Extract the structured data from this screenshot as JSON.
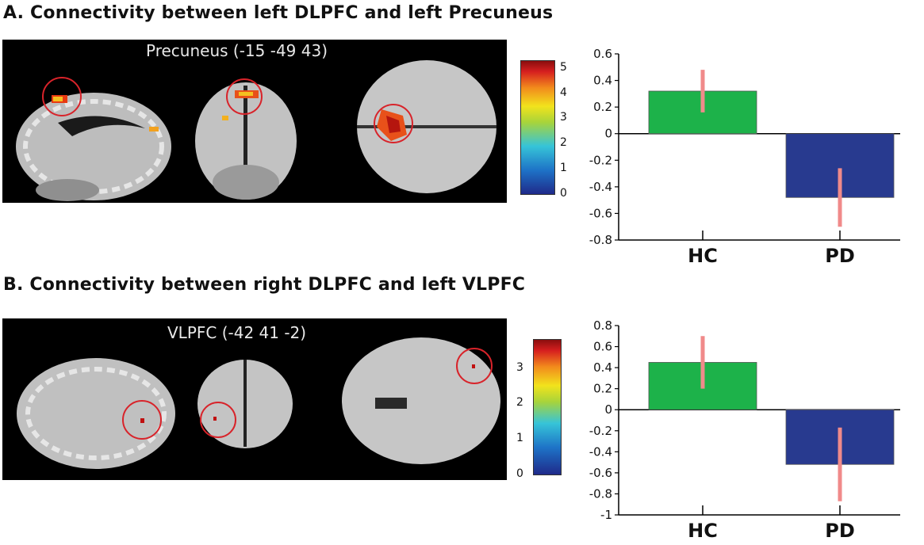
{
  "panels": [
    {
      "title": "A. Connectivity between left DLPFC and left Precuneus",
      "roi_label": "Precuneus (-15 -49 43)",
      "colorbar": {
        "ticks": [
          "0",
          "1",
          "2",
          "3",
          "4",
          "5"
        ],
        "min": 0,
        "max": 5.3
      }
    },
    {
      "title": "B. Connectivity between right DLPFC and left VLPFC",
      "roi_label": "VLPFC (-42 41 -2)",
      "colorbar": {
        "ticks": [
          "0",
          "1",
          "2",
          "3"
        ],
        "min": 0,
        "max": 3.8
      }
    }
  ],
  "chart_data": [
    {
      "type": "bar",
      "categories": [
        "HC",
        "PD"
      ],
      "series": [
        {
          "values": [
            0.32,
            -0.48
          ],
          "errors": [
            0.16,
            0.22
          ]
        }
      ],
      "ylim": [
        -0.8,
        0.6
      ],
      "yticks": [
        -0.8,
        -0.6,
        -0.4,
        -0.2,
        0,
        0.2,
        0.4,
        0.6
      ],
      "ytick_labels": [
        "-0.8",
        "-0.6",
        "-0.4",
        "-0.2",
        "0",
        "0.2",
        "0.4",
        "0.6"
      ],
      "bar_colors": [
        "#1db24a",
        "#283a8f"
      ],
      "error_color": "#f08a8a"
    },
    {
      "type": "bar",
      "categories": [
        "HC",
        "PD"
      ],
      "series": [
        {
          "values": [
            0.45,
            -0.52
          ],
          "errors": [
            0.25,
            0.35
          ]
        }
      ],
      "ylim": [
        -1,
        0.8
      ],
      "yticks": [
        -1,
        -0.8,
        -0.6,
        -0.4,
        -0.2,
        0,
        0.2,
        0.4,
        0.6,
        0.8
      ],
      "ytick_labels": [
        "-1",
        "-0.8",
        "-0.6",
        "-0.4",
        "-0.2",
        "0",
        "0.2",
        "0.4",
        "0.6",
        "0.8"
      ],
      "bar_colors": [
        "#1db24a",
        "#283a8f"
      ],
      "error_color": "#f08a8a"
    }
  ]
}
